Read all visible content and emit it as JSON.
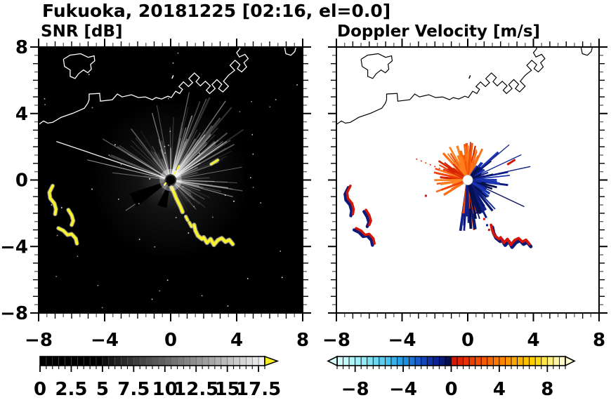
{
  "title": "Fukuoka, 20181225 [02:16, el=0.0]",
  "axes": {
    "x_range": [
      -8,
      8
    ],
    "y_range": [
      -8,
      8
    ],
    "x_tick_values": [
      -8,
      -4,
      0,
      4,
      8
    ],
    "x_tick_labels": [
      "−8",
      "−4",
      "0",
      "4",
      "8"
    ],
    "y_tick_values": [
      8,
      4,
      0,
      -4,
      -8
    ],
    "y_tick_labels": [
      "8",
      "4",
      "0",
      "−4",
      "−8"
    ],
    "minor_step": 0.5
  },
  "hard_targets": {
    "se_chain": {
      "steep": [
        [
          0.05,
          -0.45
        ],
        [
          0.2,
          -0.75
        ],
        [
          0.32,
          -1.05
        ],
        [
          0.45,
          -1.32
        ],
        [
          0.6,
          -1.62
        ],
        [
          0.72,
          -1.92
        ]
      ],
      "dashes": [
        [
          [
            0.92,
            -2.2
          ],
          [
            1.03,
            -2.42
          ]
        ],
        [
          [
            1.13,
            -2.56
          ],
          [
            1.26,
            -2.8
          ]
        ]
      ],
      "hook": [
        [
          1.42,
          -2.7
        ],
        [
          1.5,
          -3.05
        ],
        [
          1.65,
          -3.35
        ],
        [
          1.9,
          -3.55
        ]
      ],
      "wave": [
        [
          2.0,
          -3.45
        ],
        [
          2.2,
          -3.78
        ],
        [
          2.42,
          -3.55
        ],
        [
          2.62,
          -3.9
        ],
        [
          2.86,
          -3.62
        ],
        [
          3.1,
          -3.5
        ],
        [
          3.32,
          -3.72
        ],
        [
          3.55,
          -3.6
        ],
        [
          3.76,
          -3.86
        ]
      ]
    },
    "west_blobs": [
      [
        [
          -7.15,
          -0.35
        ],
        [
          -7.35,
          -0.75
        ],
        [
          -7.3,
          -1.1
        ],
        [
          -7.05,
          -1.4
        ],
        [
          -6.95,
          -1.75
        ],
        [
          -7.0,
          -2.05
        ]
      ],
      [
        [
          -6.2,
          -1.8
        ],
        [
          -6.0,
          -2.12
        ],
        [
          -5.9,
          -2.45
        ],
        [
          -6.0,
          -2.7
        ]
      ],
      [
        [
          -6.8,
          -2.9
        ],
        [
          -6.5,
          -3.05
        ],
        [
          -6.25,
          -3.3
        ],
        [
          -6.0,
          -3.25
        ],
        [
          -5.75,
          -3.52
        ],
        [
          -5.68,
          -3.82
        ]
      ]
    ],
    "ne_dash": [
      [
        2.45,
        0.95
      ],
      [
        2.85,
        1.2
      ]
    ]
  },
  "coastline": {
    "island": [
      [
        -6.5,
        7.26
      ],
      [
        -6.1,
        7.51
      ],
      [
        -5.45,
        7.6
      ],
      [
        -5.0,
        7.38
      ],
      [
        -4.64,
        7.47
      ],
      [
        -4.6,
        7.17
      ],
      [
        -4.85,
        6.96
      ],
      [
        -4.81,
        6.66
      ],
      [
        -5.02,
        6.45
      ],
      [
        -5.28,
        6.62
      ],
      [
        -5.57,
        6.4
      ],
      [
        -5.79,
        6.11
      ],
      [
        -6.09,
        6.23
      ],
      [
        -6.09,
        6.62
      ],
      [
        -6.43,
        6.83
      ],
      [
        -6.5,
        7.26
      ]
    ],
    "mainland": [
      [
        -8.05,
        3.3
      ],
      [
        -7.7,
        3.55
      ],
      [
        -7.45,
        3.42
      ],
      [
        -7.15,
        3.47
      ],
      [
        -6.64,
        3.77
      ],
      [
        -5.91,
        4.02
      ],
      [
        -5.23,
        4.32
      ],
      [
        -5.02,
        4.62
      ],
      [
        -4.94,
        4.83
      ],
      [
        -4.94,
        5.17
      ],
      [
        -4.3,
        5.21
      ],
      [
        -4.26,
        4.74
      ],
      [
        -3.53,
        4.83
      ],
      [
        -3.23,
        5.17
      ],
      [
        -2.94,
        5.0
      ],
      [
        -2.38,
        5.13
      ],
      [
        -1.96,
        4.96
      ],
      [
        -1.53,
        5.0
      ],
      [
        -1.11,
        4.83
      ],
      [
        -0.89,
        4.96
      ],
      [
        -0.55,
        4.87
      ],
      [
        -0.17,
        5.04
      ],
      [
        0.04,
        4.96
      ],
      [
        0.3,
        5.34
      ],
      [
        0.55,
        5.2
      ],
      [
        0.72,
        5.45
      ],
      [
        0.5,
        5.62
      ],
      [
        0.78,
        5.9
      ],
      [
        1.08,
        5.62
      ],
      [
        1.33,
        5.86
      ],
      [
        1.1,
        6.1
      ],
      [
        1.44,
        6.44
      ],
      [
        1.74,
        6.16
      ],
      [
        1.54,
        5.92
      ],
      [
        1.8,
        5.66
      ],
      [
        2.1,
        5.94
      ],
      [
        2.4,
        5.66
      ],
      [
        2.16,
        5.4
      ],
      [
        2.36,
        5.2
      ],
      [
        2.7,
        5.5
      ],
      [
        2.5,
        5.74
      ],
      [
        2.8,
        6.04
      ],
      [
        3.1,
        5.76
      ],
      [
        2.9,
        5.5
      ],
      [
        3.16,
        5.3
      ],
      [
        3.5,
        5.64
      ],
      [
        3.2,
        5.94
      ],
      [
        3.5,
        6.3
      ],
      [
        3.88,
        6.6
      ],
      [
        3.6,
        6.9
      ],
      [
        3.9,
        7.2
      ],
      [
        4.2,
        6.94
      ],
      [
        4.04,
        6.7
      ],
      [
        4.3,
        6.5
      ],
      [
        4.6,
        6.8
      ],
      [
        4.44,
        7.06
      ],
      [
        4.7,
        7.3
      ],
      [
        4.5,
        7.56
      ],
      [
        4.16,
        7.4
      ],
      [
        4.0,
        7.66
      ],
      [
        4.2,
        7.9
      ],
      [
        4.14,
        8.1
      ]
    ],
    "corner_fragment": [
      [
        6.88,
        8.1
      ],
      [
        6.98,
        7.6
      ],
      [
        7.28,
        7.5
      ],
      [
        7.52,
        7.72
      ],
      [
        7.62,
        8.1
      ]
    ],
    "islet": [
      [
        0.08,
        6.1
      ],
      [
        0.16,
        6.3
      ]
    ]
  },
  "chart_data": [
    {
      "type": "heatmap",
      "variant": "radar-ppi",
      "title": "SNR [dB]",
      "x_range": [
        -8,
        8
      ],
      "y_range": [
        -8,
        8
      ],
      "background": "#000000",
      "coast_color": "#ffffff",
      "radar_center": [
        0,
        0
      ],
      "colorbar": {
        "range": [
          0,
          18
        ],
        "tick_values": [
          0,
          2.5,
          5,
          7.5,
          10,
          12.5,
          15,
          17.5
        ],
        "tick_labels": [
          "0",
          "2.5",
          "5",
          "7.5",
          "10",
          "12.5",
          "15",
          "17.5"
        ],
        "black_below": 5,
        "scheme": "grayscale black-to-white",
        "overflow_arrow_color": "#f6ee20"
      },
      "beam_fans": [
        {
          "seed": 11,
          "a0": -20,
          "a1": 110,
          "n": 70,
          "len": [
            1.5,
            4.6
          ],
          "alpha": [
            0.1,
            0.5
          ],
          "w": [
            0.8,
            1.8
          ]
        },
        {
          "seed": 12,
          "a0": 30,
          "a1": 95,
          "n": 14,
          "len": [
            3.5,
            6.0
          ],
          "alpha": [
            0.12,
            0.35
          ],
          "w": [
            1.4,
            2.6
          ]
        },
        {
          "seed": 13,
          "a0": 110,
          "a1": 178,
          "n": 24,
          "len": [
            1.2,
            4.2
          ],
          "alpha": [
            0.08,
            0.38
          ],
          "w": [
            0.8,
            1.8
          ]
        },
        {
          "seed": 14,
          "a0": 295,
          "a1": 358,
          "n": 16,
          "len": [
            0.8,
            2.8
          ],
          "alpha": [
            0.08,
            0.3
          ],
          "w": [
            0.8,
            1.8
          ]
        },
        {
          "seed": 15,
          "a0": 200,
          "a1": 260,
          "n": 8,
          "len": [
            0.6,
            1.6
          ],
          "alpha": [
            0.05,
            0.15
          ],
          "w": [
            0.8,
            1.4
          ]
        }
      ],
      "long_rays": [
        {
          "a": 161.5,
          "len": 7.3,
          "alpha": 0.95,
          "w": 1.3
        },
        {
          "a": 166.5,
          "len": 5.2,
          "alpha": 0.55,
          "w": 1.0
        },
        {
          "a": 149,
          "len": 4.8,
          "alpha": 0.45,
          "w": 1.0
        },
        {
          "a": 214,
          "len": 3.3,
          "alpha": 0.4,
          "w": 1.2
        },
        {
          "a": 345,
          "len": 3.9,
          "alpha": 0.5,
          "w": 1.2
        },
        {
          "a": 55,
          "len": 5.8,
          "alpha": 0.45,
          "w": 1.4
        },
        {
          "a": 78,
          "len": 5.4,
          "alpha": 0.4,
          "w": 1.3
        }
      ],
      "shadow_wedges": [
        {
          "a0": 198,
          "a1": 218,
          "r": 2.6
        },
        {
          "a0": 242,
          "a1": 262,
          "r": 1.7
        }
      ],
      "target_color": "#f8f32b",
      "target_halo": "#a8a8a8",
      "center_specks": [
        [
          [
            0.22,
            0.35
          ],
          [
            0.3,
            0.52
          ]
        ],
        [
          [
            0.42,
            0.68
          ],
          [
            0.5,
            0.85
          ]
        ],
        [
          [
            -0.38,
            -0.3
          ],
          [
            -0.3,
            -0.18
          ]
        ]
      ],
      "noise_speckles": {
        "count": 55,
        "seed": 77
      }
    },
    {
      "type": "heatmap",
      "variant": "radar-ppi",
      "title": "Doppler Velocity [m/s]",
      "x_range": [
        -8,
        8
      ],
      "y_range": [
        -8,
        8
      ],
      "background": "#ffffff",
      "coast_color": "#000000",
      "radar_center": [
        0,
        0
      ],
      "colorbar": {
        "range": [
          -9.5,
          9.5
        ],
        "tick_values": [
          -8,
          -4,
          0,
          4,
          8
        ],
        "tick_labels": [
          "−8",
          "−4",
          "0",
          "4",
          "8"
        ],
        "scheme": "diverging cyan-blue-navy / red-orange-yellow",
        "negative_stops": [
          [
            0,
            "#dafdfd"
          ],
          [
            0.25,
            "#8ee9f6"
          ],
          [
            0.45,
            "#45c2ef"
          ],
          [
            0.6,
            "#1f8fe0"
          ],
          [
            0.75,
            "#1348c0"
          ],
          [
            0.88,
            "#0a1f92"
          ],
          [
            1,
            "#030a3c"
          ]
        ],
        "positive_stops": [
          [
            0,
            "#d40f00"
          ],
          [
            0.2,
            "#ee4400"
          ],
          [
            0.4,
            "#fd7700"
          ],
          [
            0.6,
            "#ffb300"
          ],
          [
            0.75,
            "#ffd900"
          ],
          [
            0.88,
            "#fff08c"
          ],
          [
            1,
            "#fffbd0"
          ]
        ]
      },
      "positive_fan": {
        "seed": 21,
        "a0": 58,
        "a1": 215,
        "n": 58,
        "len": [
          0.6,
          2.4
        ],
        "w": [
          1.5,
          3.5
        ],
        "colors": [
          "#e03007",
          "#f4530b",
          "#fa6f15",
          "#d42400",
          "#fb8423",
          "#ef4208"
        ]
      },
      "positive_fan_dense": {
        "seed": 22,
        "a0": 75,
        "a1": 130,
        "n": 22,
        "len": [
          1.0,
          2.3
        ],
        "w": [
          2,
          4
        ],
        "colors": [
          "#ff6a00",
          "#ff7f1e",
          "#f4530b",
          "#fa6f15"
        ]
      },
      "negative_fan": {
        "seed": 23,
        "a0": -95,
        "a1": 58,
        "n": 60,
        "len": [
          0.6,
          2.6
        ],
        "w": [
          1.5,
          3.5
        ],
        "colors": [
          "#0d1d85",
          "#122a9e",
          "#081460",
          "#1a33b0",
          "#050f4e"
        ]
      },
      "mixed_cluster": {
        "seed": 24,
        "a0": -100,
        "a1": -48,
        "n": 26,
        "len": [
          1.5,
          3.1
        ],
        "w": [
          2,
          4.5
        ],
        "red_p": 0.3,
        "navy_colors": [
          "#0a1870",
          "#101f8c",
          "#060f50"
        ],
        "red_colors": [
          "#d42400",
          "#ee4400"
        ]
      },
      "long_rays": [
        {
          "a": 12,
          "len": 3.9,
          "w": 1.4,
          "color": "#0d1d85"
        },
        {
          "a": 25,
          "len": 3.6,
          "w": 1.4,
          "color": "#122a9e"
        },
        {
          "a": 40,
          "len": 3.3,
          "w": 1.2,
          "color": "#0d1d85"
        },
        {
          "a": -25,
          "len": 3.8,
          "w": 1.4,
          "color": "#081460"
        },
        {
          "a": 158,
          "len": 3.6,
          "w": 1.6,
          "color": "#e03007",
          "dash": "2 5"
        }
      ],
      "target_red": "#d41404",
      "target_navy": "#0c1a7a",
      "specks": [
        [
          -2.55,
          -0.95,
          "#d41404"
        ],
        [
          1.0,
          -2.35,
          "#d41404"
        ],
        [
          1.18,
          -2.72,
          "#0c1a7a"
        ],
        [
          1.3,
          -3.0,
          "#d41404"
        ]
      ]
    }
  ]
}
